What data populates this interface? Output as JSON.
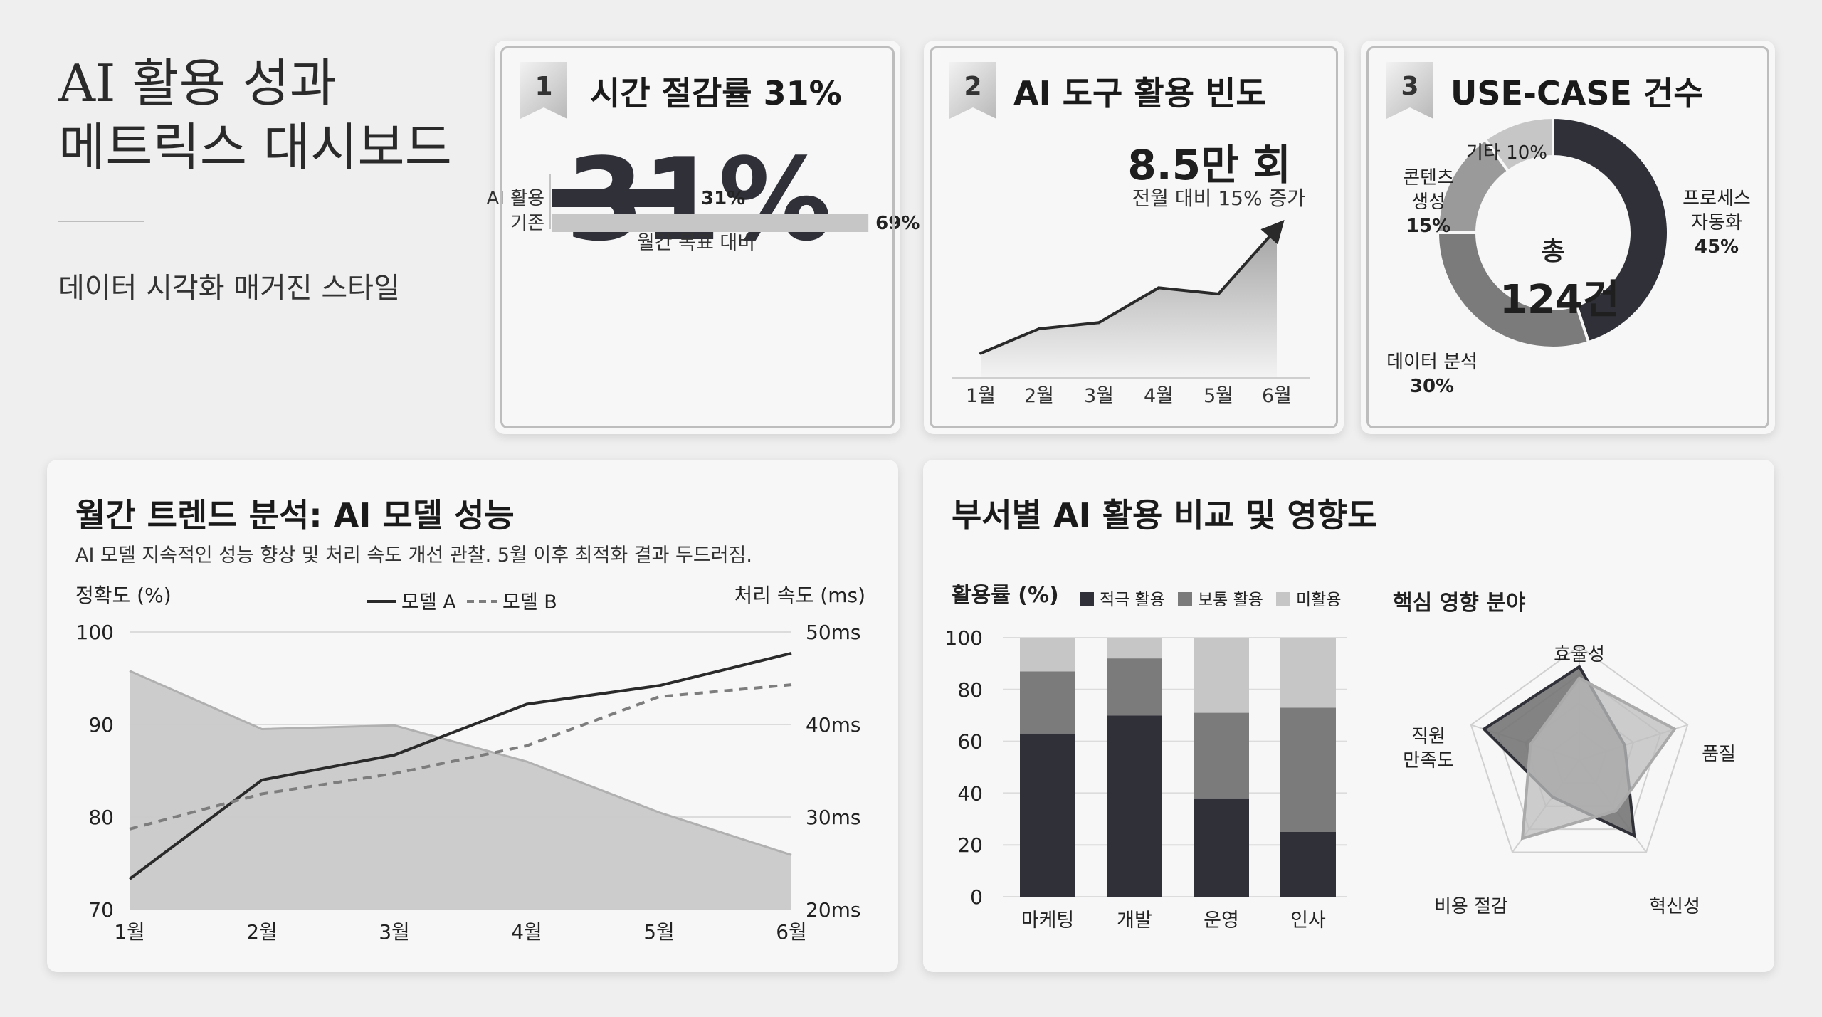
{
  "header": {
    "title_line1": "AI 활용 성과",
    "title_line2": "메트릭스 대시보드",
    "subtitle": "데이터 시각화 매거진 스타일"
  },
  "cards": {
    "time_saving": {
      "number": "1",
      "title": "시간 절감률 31%",
      "big_value": "31%",
      "note": "월간 목표 대비"
    },
    "tool_frequency": {
      "number": "2",
      "title": "AI 도구 활용 빈도",
      "value": "8.5만 회",
      "change": "전월 대비 15% 증가"
    },
    "use_case": {
      "number": "3",
      "title": "USE-CASE 건수",
      "center_line1": "총",
      "center_line2": "124건"
    }
  },
  "trend_panel": {
    "title": "월간 트렌드 분석: AI 모델 성능",
    "description": "AI 모델 지속적인 성능 향상 및 처리 속도 개선 관찰. 5월 이후 최적화 결과 두드러짐."
  },
  "dept_panel": {
    "title": "부서별 AI 활용 비교 및 영향도",
    "radar_title": "핵심 영향 분야"
  },
  "colors": {
    "dark": "#2f3038",
    "mid": "#7b7b7b",
    "light": "#c6c6c6",
    "area": "#c9c9c9"
  },
  "chart_data": [
    {
      "type": "bar",
      "orientation": "horizontal",
      "categories": [
        "AI 활용",
        "기존"
      ],
      "values": [
        31,
        69
      ],
      "value_labels": [
        "31%",
        "69%"
      ],
      "xlabel": "월간 목표 대비"
    },
    {
      "type": "area",
      "categories": [
        "1월",
        "2월",
        "3월",
        "4월",
        "5월",
        "6월"
      ],
      "values": [
        1.2,
        2.4,
        2.7,
        4.4,
        4.1,
        7.3
      ],
      "annotation": "8.5만 회"
    },
    {
      "type": "pie",
      "style": "donut",
      "categories": [
        "프로세스 자동화",
        "데이터 분석",
        "콘텐츠 생성",
        "기타"
      ],
      "values": [
        45,
        30,
        15,
        10
      ],
      "labels": [
        {
          "lines": [
            "프로세스",
            "자동화",
            "45%"
          ]
        },
        {
          "lines": [
            "데이터 분석",
            "30%"
          ]
        },
        {
          "lines": [
            "콘텐츠",
            "생성",
            "15%"
          ]
        },
        {
          "lines": [
            "기타 10%"
          ]
        }
      ]
    },
    {
      "type": "line",
      "categories": [
        "1월",
        "2월",
        "3월",
        "4월",
        "5월",
        "6월"
      ],
      "ylabel": "정확도 (%)",
      "ylabel_right": "처리 속도 (ms)",
      "ylim": [
        70,
        100
      ],
      "yticks": [
        100,
        90,
        80,
        70
      ],
      "ylim_right": [
        20,
        50
      ],
      "yticks_right": [
        "50ms",
        "40ms",
        "30ms",
        "20ms"
      ],
      "series": [
        {
          "name": "모델 A",
          "style": "solid",
          "values": [
            73.3,
            84.0,
            86.7,
            92.2,
            94.2,
            97.7
          ]
        },
        {
          "name": "모델 B",
          "style": "dashed",
          "values": [
            78.7,
            82.5,
            84.7,
            87.7,
            93.0,
            94.3
          ]
        }
      ],
      "speed_area": {
        "values": [
          45.8,
          39.5,
          39.9,
          36.0,
          30.5,
          25.9
        ]
      },
      "legend_position": "top"
    },
    {
      "type": "bar",
      "stacked": true,
      "categories": [
        "마케팅",
        "개발",
        "운영",
        "인사"
      ],
      "ylabel": "활용률 (%)",
      "ylim": [
        0,
        100
      ],
      "yticks": [
        100,
        80,
        60,
        40,
        20,
        0
      ],
      "series": [
        {
          "name": "적극 활용",
          "values": [
            63,
            70,
            38,
            25
          ]
        },
        {
          "name": "보통 활용",
          "values": [
            24,
            22,
            33,
            48
          ]
        },
        {
          "name": "미활용",
          "values": [
            13,
            8,
            29,
            27
          ]
        }
      ],
      "legend_position": "top"
    },
    {
      "type": "radar",
      "axes": [
        "효율성",
        "품질",
        "혁신성",
        "비용 절감",
        "직원 만족도"
      ],
      "axis_label_lines": [
        [
          "효율성"
        ],
        [
          "품질"
        ],
        [
          "혁신성"
        ],
        [
          "비용 절감"
        ],
        [
          "직원",
          "만족도"
        ]
      ],
      "series": [
        {
          "values": [
            0.82,
            0.42,
            0.82,
            0.4,
            0.88
          ]
        },
        {
          "values": [
            0.72,
            0.88,
            0.55,
            0.85,
            0.45
          ]
        }
      ]
    }
  ]
}
